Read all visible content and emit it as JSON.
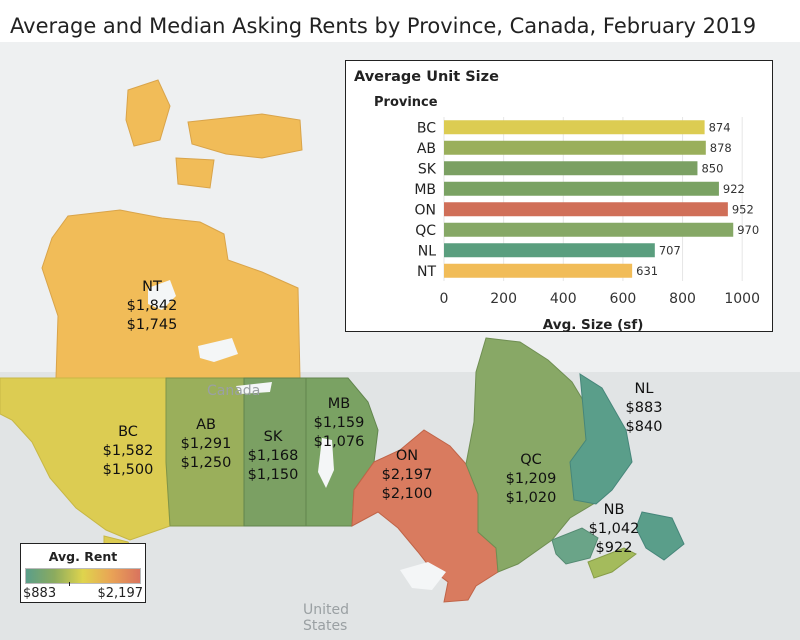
{
  "title": "Average and Median Asking Rents by Province, Canada, February 2019",
  "map": {
    "background_labels": {
      "canada": "Canada",
      "united_states": "United States"
    },
    "regions": [
      {
        "code": "NT",
        "avg_rent": "$1,842",
        "median_rent": "$1,745",
        "color": "#f1bc58"
      },
      {
        "code": "BC",
        "avg_rent": "$1,582",
        "median_rent": "$1,500",
        "color": "#dccc52"
      },
      {
        "code": "AB",
        "avg_rent": "$1,291",
        "median_rent": "$1,250",
        "color": "#9aaf5b"
      },
      {
        "code": "SK",
        "avg_rent": "$1,168",
        "median_rent": "$1,150",
        "color": "#7ba063"
      },
      {
        "code": "MB",
        "avg_rent": "$1,159",
        "median_rent": "$1,076",
        "color": "#7aa263"
      },
      {
        "code": "ON",
        "avg_rent": "$2,197",
        "median_rent": "$2,100",
        "color": "#d97b5f"
      },
      {
        "code": "QC",
        "avg_rent": "$1,209",
        "median_rent": "$1,020",
        "color": "#88a866"
      },
      {
        "code": "NL",
        "avg_rent": "$883",
        "median_rent": "$840",
        "color": "#5a9e8a"
      },
      {
        "code": "NB",
        "avg_rent": "$1,042",
        "median_rent": "$922",
        "color": "#6aa488"
      }
    ]
  },
  "legend": {
    "title": "Avg. Rent",
    "min_label": "$883",
    "max_label": "$2,197",
    "gradient_colors": [
      "#5a9e8a",
      "#8cab5e",
      "#dfd44d",
      "#e9a356",
      "#d9735e"
    ]
  },
  "inset": {
    "title": "Average Unit Size",
    "row_header": "Province",
    "axis_label": "Avg. Size (sf)"
  },
  "chart_data": {
    "type": "bar",
    "orientation": "horizontal",
    "title": "Average Unit Size",
    "xlabel": "Avg. Size (sf)",
    "ylabel": "Province",
    "categories": [
      "BC",
      "AB",
      "SK",
      "MB",
      "ON",
      "QC",
      "NL",
      "NT"
    ],
    "values": [
      874,
      878,
      850,
      922,
      952,
      970,
      707,
      631
    ],
    "colors": [
      "#dccc52",
      "#9aaf5b",
      "#7ba063",
      "#7aa263",
      "#d06f58",
      "#86a866",
      "#5a9e7e",
      "#f1bc58"
    ],
    "xlim": [
      0,
      1100
    ],
    "xticks": [
      0,
      200,
      400,
      600,
      800,
      1000
    ],
    "grid": true
  }
}
